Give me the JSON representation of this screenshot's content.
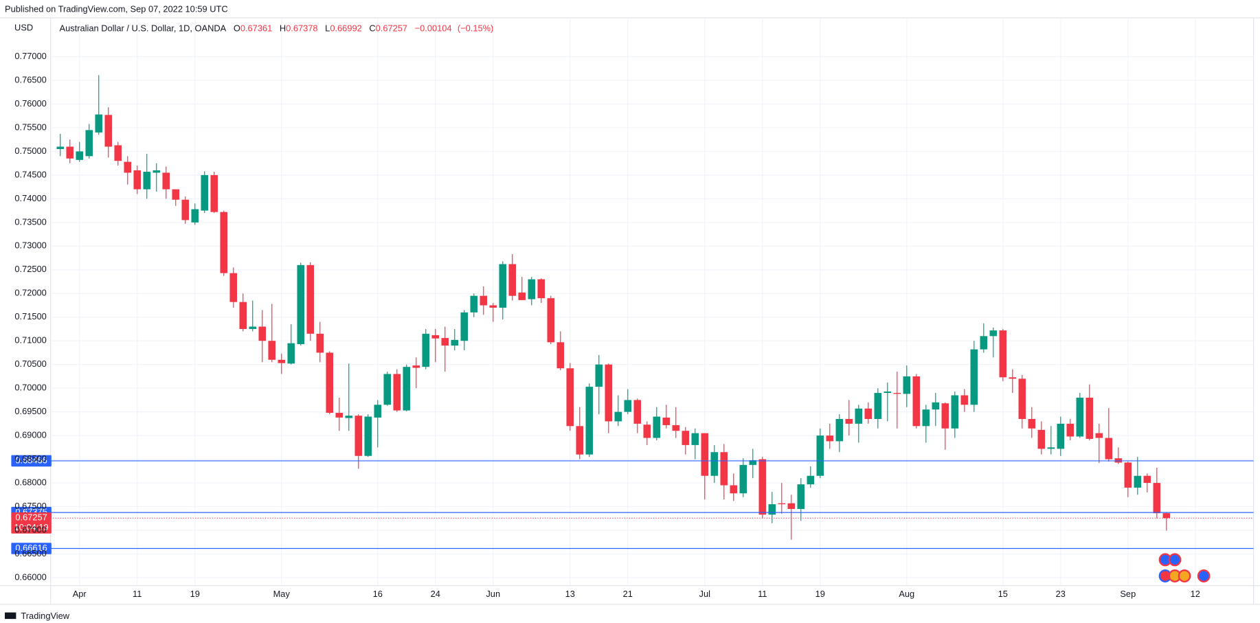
{
  "chart_data": {
    "type": "candlestick",
    "published": "Published on TradingView.com, Sep 07, 2022 10:59 UTC",
    "currency": "USD",
    "title": "Australian Dollar / U.S. Dollar, 1D, OANDA",
    "ohlc_labels": [
      "O",
      "H",
      "L",
      "C"
    ],
    "ohlc_values": [
      0.67361,
      0.67378,
      0.66992,
      0.67257
    ],
    "change": {
      "value": -0.00104,
      "label": "−0.00104"
    },
    "change_pct": {
      "value": -0.15,
      "label": "(−0.15%)"
    },
    "brand": "TradingView",
    "up_color": "#089981",
    "down_color": "#f23645",
    "grid": true,
    "ylim": [
      0.6583,
      0.7782
    ],
    "yticks": [
      {
        "value": 0.66,
        "label": "0.66000"
      },
      {
        "value": 0.665,
        "label": "0.66500"
      },
      {
        "value": 0.67,
        "label": "0.67000"
      },
      {
        "value": 0.675,
        "label": "0.67500"
      },
      {
        "value": 0.68,
        "label": "0.68000"
      },
      {
        "value": 0.685,
        "label": "0.68500"
      },
      {
        "value": 0.69,
        "label": "0.69000"
      },
      {
        "value": 0.695,
        "label": "0.69500"
      },
      {
        "value": 0.7,
        "label": "0.70000"
      },
      {
        "value": 0.705,
        "label": "0.70500"
      },
      {
        "value": 0.71,
        "label": "0.71000"
      },
      {
        "value": 0.715,
        "label": "0.71500"
      },
      {
        "value": 0.72,
        "label": "0.72000"
      },
      {
        "value": 0.725,
        "label": "0.72500"
      },
      {
        "value": 0.73,
        "label": "0.73000"
      },
      {
        "value": 0.735,
        "label": "0.73500"
      },
      {
        "value": 0.74,
        "label": "0.74000"
      },
      {
        "value": 0.745,
        "label": "0.74500"
      },
      {
        "value": 0.75,
        "label": "0.75000"
      },
      {
        "value": 0.755,
        "label": "0.75500"
      },
      {
        "value": 0.76,
        "label": "0.76000"
      },
      {
        "value": 0.765,
        "label": "0.76500"
      },
      {
        "value": 0.77,
        "label": "0.77000"
      }
    ],
    "hlines": [
      {
        "value": 0.68466,
        "color": "#2962ff"
      },
      {
        "value": 0.67375,
        "color": "#2962ff"
      },
      {
        "value": 0.66616,
        "color": "#2962ff"
      }
    ],
    "last_price": 0.67257,
    "countdown": "10:04:19",
    "categories": [
      null,
      null,
      "Apr",
      null,
      null,
      null,
      null,
      null,
      "11",
      null,
      null,
      null,
      null,
      null,
      "19",
      null,
      null,
      null,
      null,
      null,
      null,
      null,
      null,
      "May",
      null,
      null,
      null,
      null,
      null,
      null,
      null,
      null,
      null,
      "16",
      null,
      null,
      null,
      null,
      null,
      "24",
      null,
      null,
      null,
      null,
      null,
      "Jun",
      null,
      null,
      null,
      null,
      null,
      null,
      null,
      "13",
      null,
      null,
      null,
      null,
      null,
      "21",
      null,
      null,
      null,
      null,
      null,
      null,
      null,
      "Jul",
      null,
      null,
      null,
      null,
      null,
      "11",
      null,
      null,
      null,
      null,
      null,
      "19",
      null,
      null,
      null,
      null,
      null,
      null,
      null,
      null,
      "Aug",
      null,
      null,
      null,
      null,
      null,
      null,
      null,
      null,
      null,
      "15",
      null,
      null,
      null,
      null,
      null,
      "23",
      null,
      null,
      null,
      null,
      null,
      null,
      "Sep",
      null,
      null,
      null,
      null,
      null,
      null,
      "12"
    ],
    "open": [
      0.7505,
      0.751,
      0.7482,
      0.749,
      0.754,
      0.7577,
      0.7513,
      0.7478,
      0.746,
      0.742,
      0.7455,
      0.7455,
      0.742,
      0.7398,
      0.735,
      0.7375,
      0.745,
      0.7372,
      0.7243,
      0.7182,
      0.7125,
      0.713,
      0.71,
      0.706,
      0.7052,
      0.7093,
      0.726,
      0.7115,
      0.7075,
      0.6948,
      0.6937,
      0.6942,
      0.6857,
      0.6938,
      0.6965,
      0.703,
      0.6953,
      0.7048,
      0.7045,
      0.7112,
      0.7106,
      0.709,
      0.71,
      0.716,
      0.7195,
      0.7175,
      0.717,
      0.7262,
      0.7202,
      0.7188,
      0.723,
      0.719,
      0.7097,
      0.7042,
      0.692,
      0.686,
      0.7003,
      0.705,
      0.693,
      0.695,
      0.6975,
      0.6923,
      0.6895,
      0.6938,
      0.6922,
      0.691,
      0.688,
      0.6905,
      0.6815,
      0.6865,
      0.6795,
      0.6778,
      0.6838,
      0.685,
      0.6733,
      0.6757,
      0.6757,
      0.6745,
      0.6797,
      0.6815,
      0.69,
      0.6888,
      0.6935,
      0.6925,
      0.6957,
      0.6935,
      0.699,
      0.699,
      0.6988,
      0.7025,
      0.692,
      0.6955,
      0.6968,
      0.6915,
      0.6985,
      0.6965,
      0.7082,
      0.711,
      0.7122,
      0.7023,
      0.702,
      0.6935,
      0.6912,
      0.6872,
      0.6872,
      0.6925,
      0.6898,
      0.698,
      0.6905,
      0.6895,
      0.6852,
      0.6843,
      0.679,
      0.6815,
      0.68,
      0.67361,
      null,
      null,
      null
    ],
    "high": [
      0.7537,
      0.7525,
      0.752,
      0.7558,
      0.7661,
      0.7593,
      0.752,
      0.749,
      0.747,
      0.7495,
      0.7475,
      0.7468,
      0.742,
      0.7405,
      0.739,
      0.7458,
      0.7457,
      0.7375,
      0.7255,
      0.72,
      0.7185,
      0.7165,
      0.7178,
      0.7073,
      0.7135,
      0.7265,
      0.7266,
      0.714,
      0.7078,
      0.698,
      0.7052,
      0.6945,
      0.6945,
      0.6975,
      0.7035,
      0.704,
      0.705,
      0.7065,
      0.7125,
      0.7125,
      0.713,
      0.7125,
      0.7165,
      0.72,
      0.7215,
      0.718,
      0.7268,
      0.7283,
      0.7235,
      0.7235,
      0.7232,
      0.7195,
      0.712,
      0.7053,
      0.696,
      0.701,
      0.707,
      0.7052,
      0.6985,
      0.6998,
      0.6978,
      0.693,
      0.696,
      0.6965,
      0.696,
      0.6918,
      0.6915,
      0.6905,
      0.688,
      0.6882,
      0.682,
      0.6852,
      0.6872,
      0.6855,
      0.6781,
      0.68,
      0.6775,
      0.681,
      0.6835,
      0.6915,
      0.6925,
      0.6945,
      0.6975,
      0.6965,
      0.697,
      0.7,
      0.7012,
      0.7035,
      0.7048,
      0.703,
      0.6965,
      0.699,
      0.697,
      0.6993,
      0.6998,
      0.71,
      0.7137,
      0.7128,
      0.7125,
      0.704,
      0.7028,
      0.696,
      0.693,
      0.692,
      0.694,
      0.6935,
      0.699,
      0.7008,
      0.6925,
      0.6958,
      0.6875,
      0.6845,
      0.6855,
      0.682,
      0.6832,
      0.67378,
      null,
      null,
      null
    ],
    "low": [
      0.749,
      0.7475,
      0.7478,
      0.7485,
      0.7535,
      0.7487,
      0.747,
      0.743,
      0.741,
      0.74,
      0.7415,
      0.74,
      0.7385,
      0.7347,
      0.7345,
      0.737,
      0.737,
      0.7237,
      0.717,
      0.712,
      0.712,
      0.7055,
      0.7055,
      0.703,
      0.705,
      0.709,
      0.71,
      0.7055,
      0.6945,
      0.691,
      0.691,
      0.683,
      0.6855,
      0.6875,
      0.6963,
      0.695,
      0.6951,
      0.7,
      0.704,
      0.7055,
      0.7035,
      0.708,
      0.708,
      0.715,
      0.7155,
      0.714,
      0.7145,
      0.7185,
      0.719,
      0.7175,
      0.718,
      0.7093,
      0.7038,
      0.691,
      0.685,
      0.6855,
      0.6945,
      0.6905,
      0.692,
      0.6945,
      0.6905,
      0.688,
      0.689,
      0.6915,
      0.6895,
      0.686,
      0.685,
      0.6765,
      0.68,
      0.6765,
      0.6762,
      0.677,
      0.681,
      0.6725,
      0.6715,
      0.6735,
      0.668,
      0.672,
      0.679,
      0.681,
      0.6872,
      0.6865,
      0.69,
      0.6885,
      0.6925,
      0.6915,
      0.693,
      0.6915,
      0.696,
      0.6915,
      0.6885,
      0.692,
      0.687,
      0.6895,
      0.695,
      0.695,
      0.7075,
      0.7065,
      0.7015,
      0.699,
      0.6915,
      0.6895,
      0.686,
      0.686,
      0.6857,
      0.689,
      0.6895,
      0.689,
      0.6842,
      0.6845,
      0.684,
      0.677,
      0.6775,
      0.678,
      0.6725,
      0.66992,
      null,
      null,
      null
    ],
    "close": [
      0.751,
      0.7485,
      0.75,
      0.7545,
      0.7578,
      0.751,
      0.748,
      0.7455,
      0.742,
      0.7457,
      0.746,
      0.742,
      0.7398,
      0.7355,
      0.7378,
      0.745,
      0.7372,
      0.7243,
      0.7182,
      0.7125,
      0.713,
      0.71,
      0.706,
      0.7053,
      0.7095,
      0.726,
      0.7115,
      0.7075,
      0.6948,
      0.6938,
      0.6942,
      0.6857,
      0.694,
      0.6965,
      0.703,
      0.6953,
      0.7045,
      0.7043,
      0.7115,
      0.7105,
      0.709,
      0.7102,
      0.716,
      0.7195,
      0.7175,
      0.717,
      0.7262,
      0.7195,
      0.7186,
      0.723,
      0.719,
      0.7097,
      0.7042,
      0.692,
      0.686,
      0.7003,
      0.705,
      0.693,
      0.695,
      0.6975,
      0.6925,
      0.6895,
      0.694,
      0.6922,
      0.691,
      0.688,
      0.6905,
      0.6815,
      0.6865,
      0.6795,
      0.6778,
      0.6838,
      0.6848,
      0.6733,
      0.6755,
      0.6755,
      0.6745,
      0.6797,
      0.6815,
      0.69,
      0.6888,
      0.6935,
      0.6925,
      0.6957,
      0.6935,
      0.699,
      0.6993,
      0.6988,
      0.7025,
      0.692,
      0.6955,
      0.697,
      0.6915,
      0.6985,
      0.6965,
      0.7082,
      0.711,
      0.7122,
      0.7023,
      0.702,
      0.6935,
      0.6915,
      0.6872,
      0.6875,
      0.6925,
      0.6898,
      0.698,
      0.6893,
      0.6895,
      0.685,
      0.6843,
      0.679,
      0.6815,
      0.68,
      0.6736,
      0.67257,
      null,
      null,
      null
    ]
  }
}
